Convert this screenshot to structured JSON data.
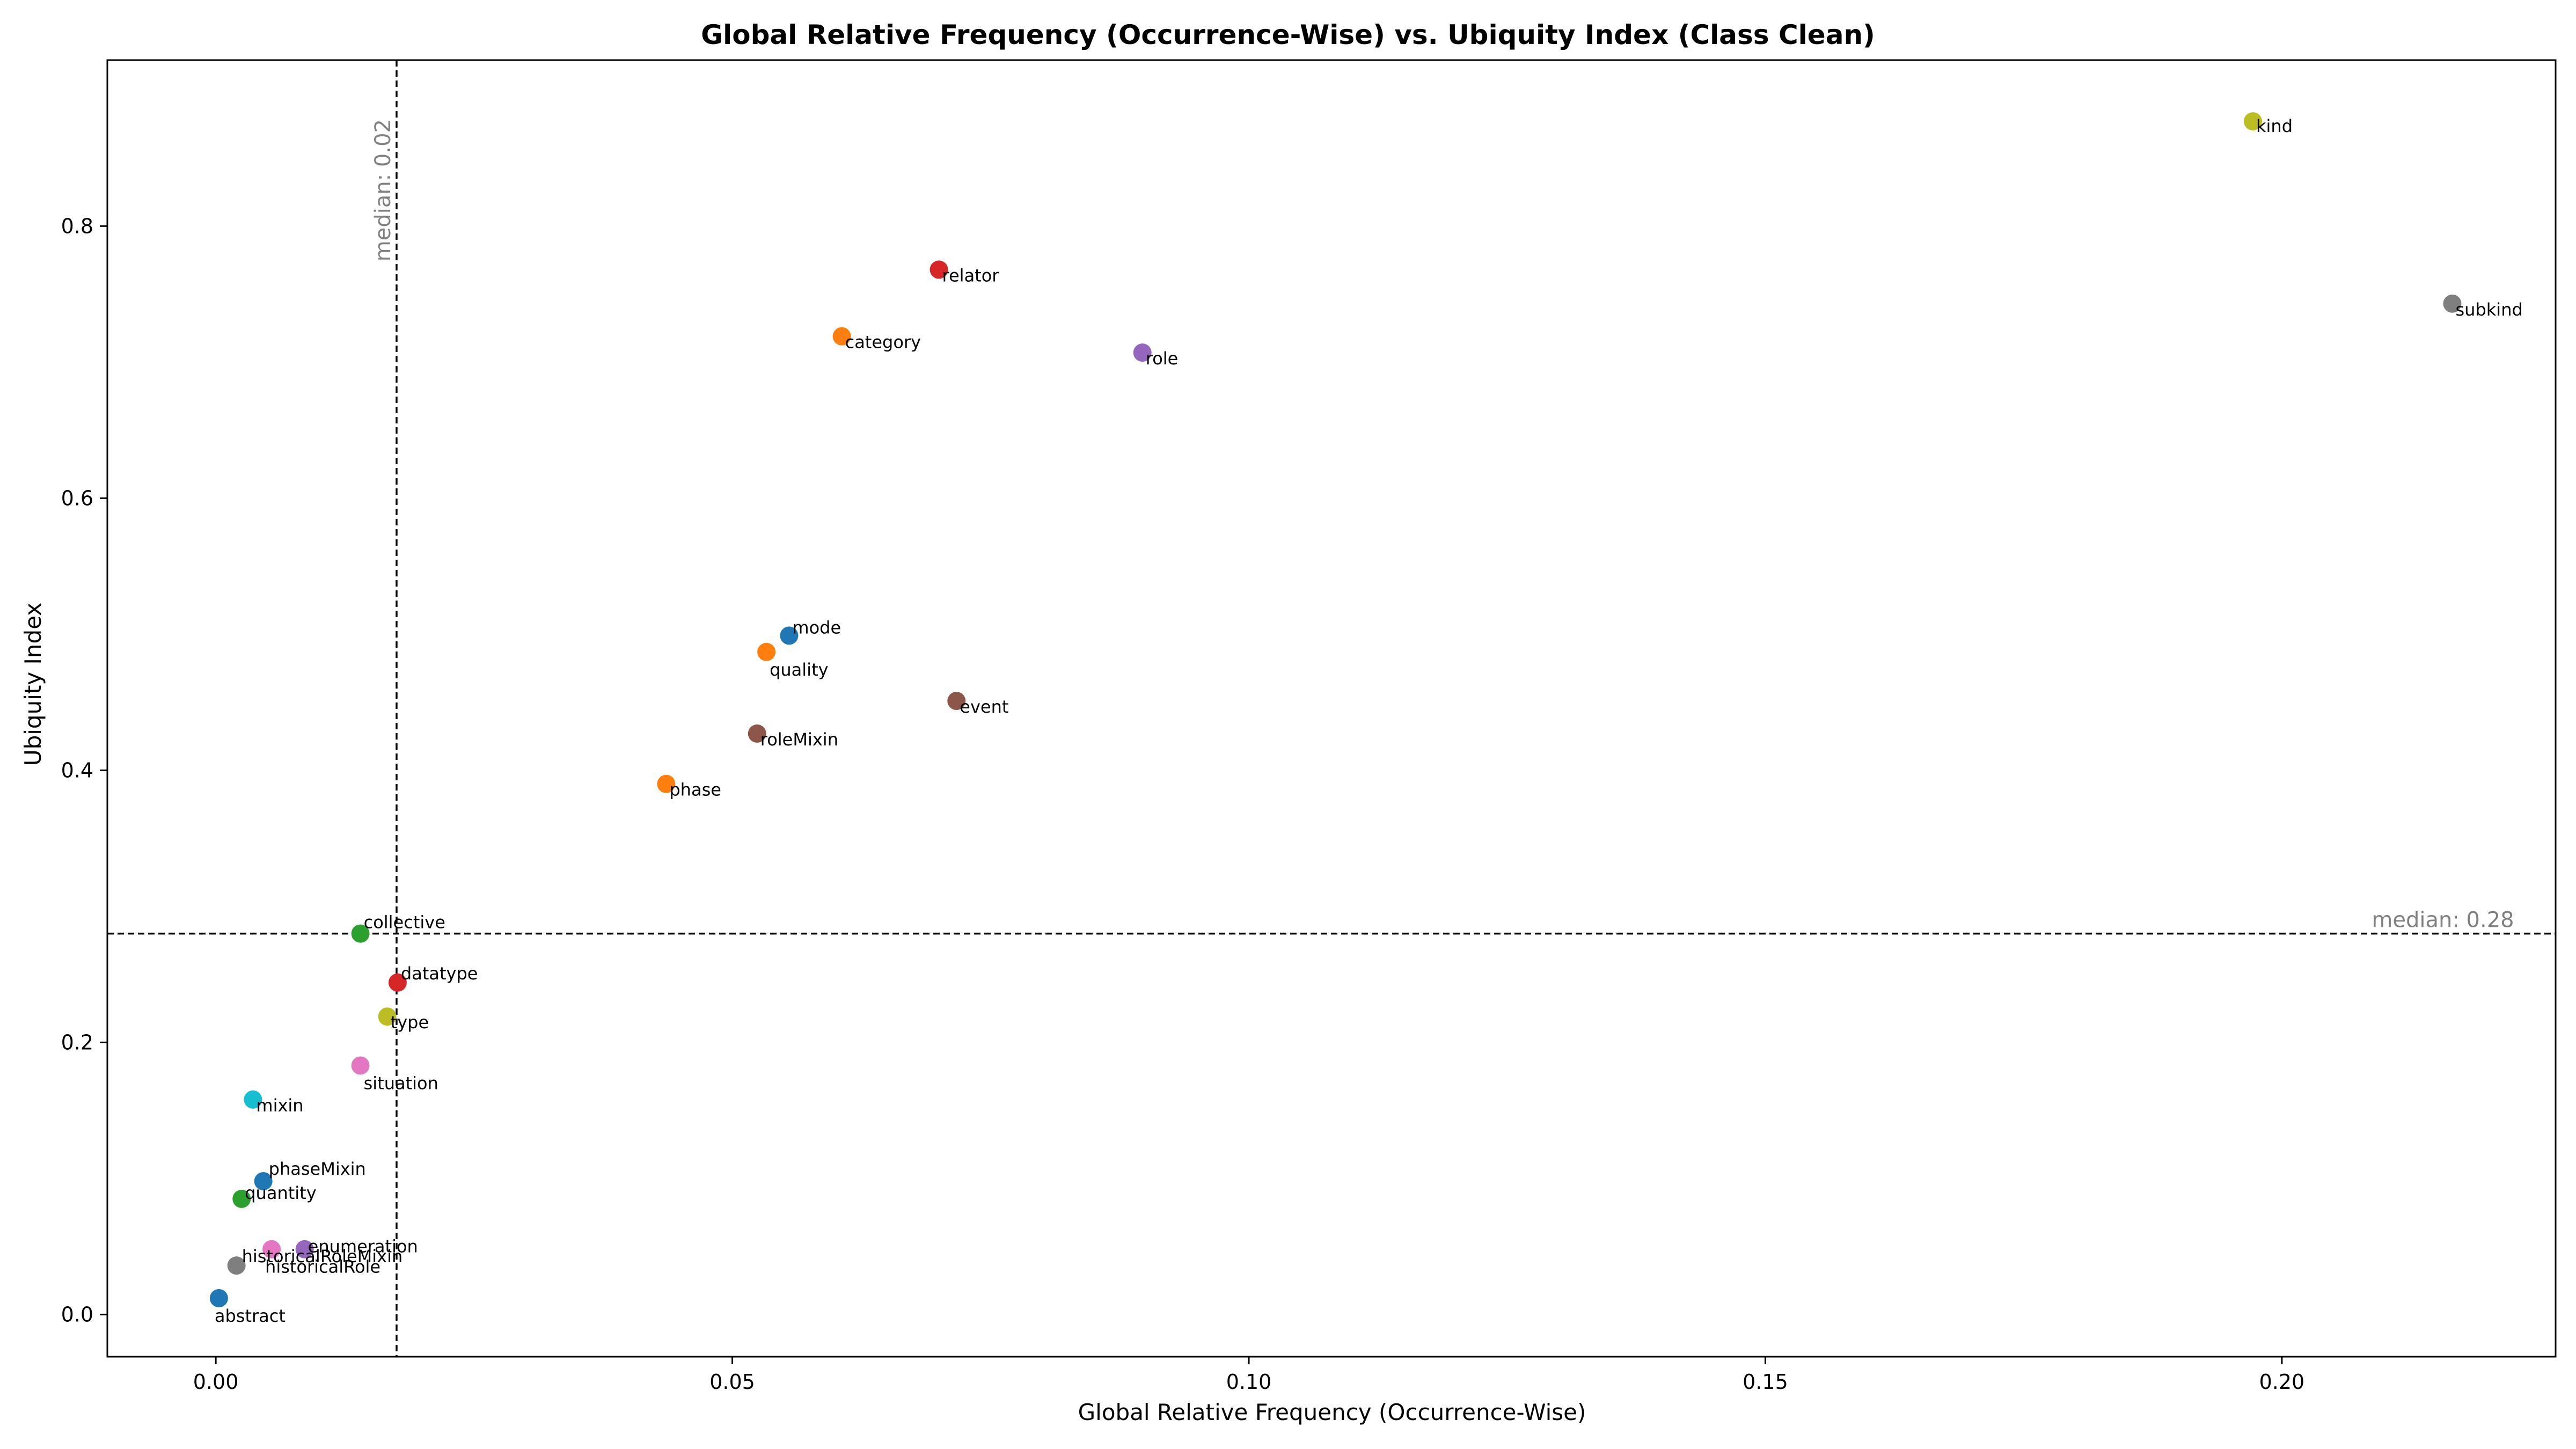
{
  "chart_data": {
    "type": "scatter",
    "title": "Global Relative Frequency (Occurrence-Wise) vs. Ubiquity Index (Class Clean)",
    "xlabel": "Global Relative Frequency (Occurrence-Wise)",
    "ylabel": "Ubiquity Index",
    "xlim": [
      -0.0105,
      0.2265
    ],
    "ylim": [
      -0.031,
      0.922
    ],
    "xticks": [
      0.0,
      0.05,
      0.1,
      0.15,
      0.2
    ],
    "xtick_labels": [
      "0.00",
      "0.05",
      "0.10",
      "0.15",
      "0.20"
    ],
    "yticks": [
      0.0,
      0.2,
      0.4,
      0.6,
      0.8
    ],
    "ytick_labels": [
      "0.0",
      "0.2",
      "0.4",
      "0.6",
      "0.8"
    ],
    "grid": false,
    "median_x": {
      "value": 0.0175,
      "label": "median: 0.02"
    },
    "median_y": {
      "value": 0.28,
      "label": "median: 0.28"
    },
    "points": [
      {
        "label": "kind",
        "x": 0.1972,
        "y": 0.877,
        "color": "#bcbd22"
      },
      {
        "label": "subkind",
        "x": 0.2165,
        "y": 0.743,
        "color": "#7f7f7f"
      },
      {
        "label": "relator",
        "x": 0.07,
        "y": 0.768,
        "color": "#d62728"
      },
      {
        "label": "category",
        "x": 0.0606,
        "y": 0.719,
        "color": "#ff7f0e"
      },
      {
        "label": "role",
        "x": 0.0897,
        "y": 0.707,
        "color": "#9467bd"
      },
      {
        "label": "mode",
        "x": 0.0555,
        "y": 0.499,
        "color": "#1f77b4"
      },
      {
        "label": "quality",
        "x": 0.0533,
        "y": 0.487,
        "color": "#ff7f0e"
      },
      {
        "label": "event",
        "x": 0.0717,
        "y": 0.451,
        "color": "#8c564b"
      },
      {
        "label": "roleMixin",
        "x": 0.0524,
        "y": 0.427,
        "color": "#8c564b"
      },
      {
        "label": "phase",
        "x": 0.0436,
        "y": 0.39,
        "color": "#ff7f0e"
      },
      {
        "label": "collective",
        "x": 0.014,
        "y": 0.28,
        "color": "#2ca02c"
      },
      {
        "label": "datatype",
        "x": 0.0176,
        "y": 0.244,
        "color": "#d62728"
      },
      {
        "label": "type",
        "x": 0.0166,
        "y": 0.219,
        "color": "#bcbd22"
      },
      {
        "label": "situation",
        "x": 0.014,
        "y": 0.183,
        "color": "#e377c2"
      },
      {
        "label": "mixin",
        "x": 0.0036,
        "y": 0.158,
        "color": "#17becf"
      },
      {
        "label": "phaseMixin",
        "x": 0.0046,
        "y": 0.098,
        "color": "#1f77b4"
      },
      {
        "label": "quantity",
        "x": 0.0025,
        "y": 0.085,
        "color": "#2ca02c"
      },
      {
        "label": "enumeration",
        "x": 0.0086,
        "y": 0.048,
        "color": "#9467bd"
      },
      {
        "label": "historicalRole",
        "x": 0.0054,
        "y": 0.048,
        "color": "#e377c2"
      },
      {
        "label": "historicalRoleMixin",
        "x": 0.002,
        "y": 0.036,
        "color": "#7f7f7f"
      },
      {
        "label": "abstract",
        "x": 0.0003,
        "y": 0.012,
        "color": "#1f77b4"
      }
    ]
  }
}
